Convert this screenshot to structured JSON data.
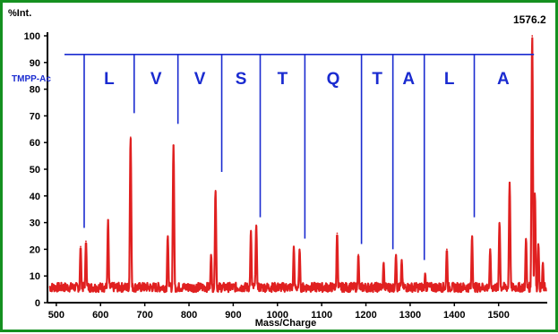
{
  "chart_data": {
    "type": "line",
    "title": "",
    "xlabel": "Mass/Charge",
    "ylabel": "%Int.",
    "xlim": [
      480,
      1610
    ],
    "ylim": [
      0,
      100
    ],
    "x_ticks": [
      500,
      600,
      700,
      800,
      900,
      1000,
      1100,
      1200,
      1300,
      1400,
      1500
    ],
    "y_ticks": [
      0,
      10,
      20,
      30,
      40,
      50,
      60,
      70,
      80,
      90,
      100
    ],
    "series_color": "#e02020",
    "annotation_color": "#1a2bd0",
    "peak_annotation": {
      "text": "1576.2",
      "x": 1576.2,
      "y": 100
    },
    "ladder": {
      "level": 93,
      "start_label": "TMPP-Ac",
      "residues": [
        "L",
        "V",
        "V",
        "S",
        "T",
        "Q",
        "T",
        "A",
        "L",
        "A"
      ],
      "boundaries": [
        {
          "x": 563,
          "y": 28
        },
        {
          "x": 676,
          "y": 71
        },
        {
          "x": 775,
          "y": 67
        },
        {
          "x": 874,
          "y": 49
        },
        {
          "x": 961,
          "y": 32
        },
        {
          "x": 1062,
          "y": 24
        },
        {
          "x": 1190,
          "y": 22
        },
        {
          "x": 1261,
          "y": 20
        },
        {
          "x": 1332,
          "y": 16
        },
        {
          "x": 1445,
          "y": 32
        },
        {
          "x": 1576,
          "y": 93
        }
      ]
    },
    "peaks": [
      {
        "x": 555,
        "y": 21
      },
      {
        "x": 567,
        "y": 23
      },
      {
        "x": 617,
        "y": 31
      },
      {
        "x": 668,
        "y": 62
      },
      {
        "x": 752,
        "y": 25
      },
      {
        "x": 765,
        "y": 59
      },
      {
        "x": 850,
        "y": 18
      },
      {
        "x": 860,
        "y": 42
      },
      {
        "x": 940,
        "y": 27
      },
      {
        "x": 952,
        "y": 29
      },
      {
        "x": 1037,
        "y": 21
      },
      {
        "x": 1050,
        "y": 20
      },
      {
        "x": 1135,
        "y": 26
      },
      {
        "x": 1183,
        "y": 18
      },
      {
        "x": 1240,
        "y": 15
      },
      {
        "x": 1268,
        "y": 18
      },
      {
        "x": 1281,
        "y": 16
      },
      {
        "x": 1334,
        "y": 11
      },
      {
        "x": 1383,
        "y": 20
      },
      {
        "x": 1440,
        "y": 25
      },
      {
        "x": 1481,
        "y": 20
      },
      {
        "x": 1502,
        "y": 30
      },
      {
        "x": 1525,
        "y": 45
      },
      {
        "x": 1562,
        "y": 24
      },
      {
        "x": 1576,
        "y": 100
      },
      {
        "x": 1582,
        "y": 41
      },
      {
        "x": 1590,
        "y": 22
      },
      {
        "x": 1600,
        "y": 15
      }
    ]
  }
}
